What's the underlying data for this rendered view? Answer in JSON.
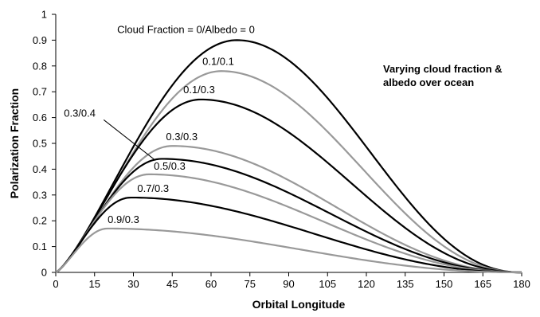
{
  "chart_data": {
    "type": "line",
    "xlabel": "Orbital Longitude",
    "ylabel": "Polarization Fraction",
    "xlim": [
      0,
      180
    ],
    "ylim": [
      0,
      1
    ],
    "x_ticks": [
      "0",
      "15",
      "30",
      "45",
      "60",
      "75",
      "90",
      "105",
      "120",
      "135",
      "150",
      "165",
      "180"
    ],
    "y_ticks": [
      "0",
      "0.1",
      "0.2",
      "0.3",
      "0.4",
      "0.5",
      "0.6",
      "0.7",
      "0.8",
      "0.9",
      "1"
    ],
    "grid": false,
    "legend": "none",
    "annotation_title": [
      "Varying cloud fraction &",
      "albedo over ocean"
    ],
    "series": [
      {
        "label": "Cloud Fraction = 0/Albedo = 0",
        "peak_x": 70,
        "peak_y": 0.9,
        "color": "#000000"
      },
      {
        "label": "0.1/0.1",
        "peak_x": 64,
        "peak_y": 0.78,
        "color": "#999999"
      },
      {
        "label": "0.1/0.3",
        "peak_x": 56,
        "peak_y": 0.67,
        "color": "#000000"
      },
      {
        "label": "0.3/0.3",
        "peak_x": 45,
        "peak_y": 0.49,
        "color": "#999999"
      },
      {
        "label": "0.3/0.4",
        "peak_x": 41,
        "peak_y": 0.44,
        "color": "#000000"
      },
      {
        "label": "0.5/0.3",
        "peak_x": 36,
        "peak_y": 0.38,
        "color": "#999999"
      },
      {
        "label": "0.7/0.3",
        "peak_x": 29,
        "peak_y": 0.29,
        "color": "#000000"
      },
      {
        "label": "0.9/0.3",
        "peak_x": 20,
        "peak_y": 0.17,
        "color": "#999999"
      }
    ]
  }
}
